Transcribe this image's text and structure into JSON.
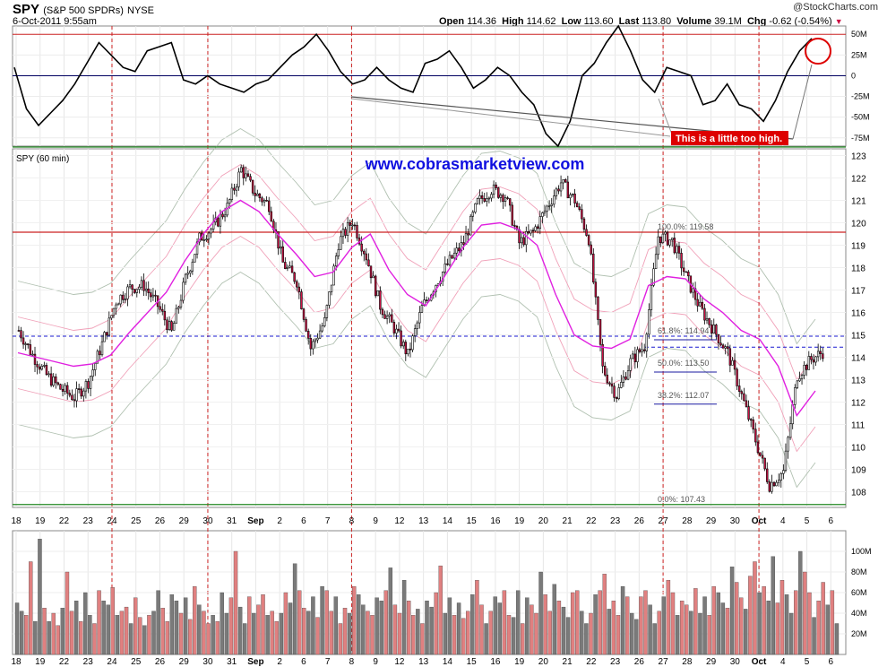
{
  "header": {
    "symbol": "SPY",
    "name": "(S&P 500 SPDRs)",
    "exchange": "NYSE",
    "datetime": "6-Oct-2011 9:55am",
    "brand": "@StockCharts.com",
    "quote": {
      "open_label": "Open",
      "open": "114.36",
      "high_label": "High",
      "high": "114.62",
      "low_label": "Low",
      "low": "113.60",
      "last_label": "Last",
      "last": "113.80",
      "volume_label": "Volume",
      "volume": "39.1M",
      "chg_label": "Chg",
      "chg": "-0.62 (-0.54%)"
    }
  },
  "colors": {
    "up_candle": "#ffffff",
    "down_candle": "#cc1144",
    "ma_line": "#e020e0",
    "band_inner": "#f0a0b8",
    "band_outer": "#b0c0b0",
    "resistance": "#cc2222",
    "support": "#228822",
    "dash_blue": "#1a1ad0",
    "annotation_red": "#dd0000",
    "vol_up": "#e08080",
    "vol_down": "#7a7a7a",
    "site_text": "#1010e0"
  },
  "watermark": "www.cobrasmarketview.com",
  "annotation": "This is a little too high.",
  "chart_data": [
    {
      "type": "line",
      "panel": "oscillator",
      "y_ticks": [
        "50M",
        "25M",
        "0",
        "-25M",
        "-50M",
        "-75M"
      ],
      "ylim": [
        -85,
        60
      ],
      "values": [
        10,
        -40,
        -60,
        -45,
        -30,
        -10,
        15,
        40,
        25,
        10,
        5,
        30,
        35,
        40,
        -5,
        -10,
        0,
        -10,
        -15,
        -20,
        -10,
        -5,
        10,
        25,
        35,
        50,
        30,
        5,
        -10,
        -5,
        10,
        -5,
        -15,
        -20,
        15,
        20,
        30,
        10,
        -15,
        -5,
        10,
        0,
        -20,
        -35,
        -70,
        -85,
        -55,
        0,
        15,
        40,
        60,
        30,
        -5,
        -20,
        10,
        5,
        0,
        -35,
        -30,
        -10,
        -35,
        -40,
        -55,
        -30,
        5,
        30,
        45
      ]
    },
    {
      "type": "candlestick",
      "panel": "price",
      "title": "SPY (60 min)",
      "x_labels": [
        "18",
        "19",
        "22",
        "23",
        "24",
        "25",
        "26",
        "29",
        "30",
        "31",
        "Sep",
        "2",
        "6",
        "7",
        "8",
        "9",
        "12",
        "13",
        "14",
        "15",
        "16",
        "19",
        "20",
        "21",
        "22",
        "23",
        "26",
        "27",
        "28",
        "29",
        "30",
        "Oct",
        "4",
        "5",
        "6"
      ],
      "y_ticks": [
        "123",
        "122",
        "121",
        "120",
        "119",
        "118",
        "117",
        "116",
        "115",
        "114",
        "113",
        "112",
        "111",
        "110",
        "109",
        "108"
      ],
      "ylim": [
        107.3,
        123.3
      ],
      "closes": [
        115.2,
        114.1,
        113.2,
        112.6,
        112.2,
        112.9,
        114.6,
        116.5,
        117.1,
        117.2,
        116.3,
        115.1,
        117.5,
        119.3,
        119.8,
        120.7,
        122.4,
        121.3,
        120.8,
        118.2,
        117.4,
        114.4,
        115.6,
        119.1,
        120.1,
        118.5,
        116.3,
        115.3,
        114.1,
        116.2,
        117.3,
        118.3,
        119.1,
        120.9,
        121.5,
        121.2,
        119.1,
        119.6,
        120.7,
        121.8,
        121.0,
        119.3,
        113.5,
        112.3,
        113.8,
        114.5,
        119.4,
        119.2,
        117.6,
        116.2,
        115.2,
        114.2,
        112.3,
        110.3,
        108.3,
        108.9,
        113.2,
        113.9,
        114.3
      ],
      "ma": [
        114.2,
        114.0,
        113.8,
        113.6,
        113.7,
        114.1,
        115.1,
        116.0,
        116.9,
        118.3,
        119.5,
        120.5,
        121.0,
        120.5,
        119.5,
        118.6,
        117.6,
        117.8,
        118.9,
        119.5,
        117.9,
        116.8,
        116.3,
        117.6,
        118.9,
        119.9,
        120.0,
        119.7,
        119.0,
        116.8,
        115.0,
        114.5,
        114.4,
        114.8,
        117.2,
        117.6,
        117.5,
        116.6,
        116.0,
        115.2,
        114.8,
        113.6,
        111.4,
        112.5
      ],
      "fib_levels": [
        {
          "label": "100.0%: 119.58",
          "value": 119.58
        },
        {
          "label": "61.8%: 114.94",
          "value": 114.94
        },
        {
          "label": "50.0%: 113.50",
          "value": 113.5
        },
        {
          "label": "38.2%: 112.07",
          "value": 112.07
        },
        {
          "label": "0.0%: 107.43",
          "value": 107.43
        }
      ],
      "horizontal_lines": [
        {
          "kind": "resistance",
          "value": 119.58
        },
        {
          "kind": "support",
          "value": 107.43
        },
        {
          "kind": "dashed",
          "value": 114.94
        },
        {
          "kind": "dashed",
          "value": 114.45
        }
      ]
    },
    {
      "type": "bar",
      "panel": "volume",
      "y_ticks": [
        "100M",
        "80M",
        "60M",
        "40M",
        "20M"
      ],
      "ylim": [
        0,
        120
      ],
      "values": [
        50,
        42,
        38,
        90,
        32,
        112,
        45,
        32,
        40,
        28,
        45,
        80,
        42,
        52,
        32,
        60,
        38,
        30,
        62,
        52,
        48,
        65,
        38,
        42,
        46,
        30,
        55,
        36,
        28,
        38,
        42,
        62,
        45,
        32,
        58,
        52,
        40,
        55,
        34,
        66,
        48,
        42,
        30,
        38,
        32,
        60,
        40,
        55,
        100,
        46,
        30,
        56,
        40,
        48,
        58,
        38,
        42,
        32,
        40,
        60,
        50,
        88,
        62,
        45,
        42,
        56,
        36,
        66,
        62,
        42,
        56,
        30,
        45,
        40,
        66,
        58,
        48,
        42,
        38,
        55,
        52,
        62,
        84,
        48,
        40,
        72,
        52,
        38,
        44,
        30,
        52,
        46,
        60,
        86,
        40,
        55,
        38,
        50,
        35,
        42,
        58,
        72,
        48,
        30,
        42,
        56,
        50,
        62,
        38,
        36,
        62,
        30,
        55,
        48,
        40,
        80,
        58,
        42,
        68,
        52,
        46,
        36,
        60,
        62,
        42,
        30,
        40,
        58,
        62,
        78,
        44,
        52,
        38,
        66,
        56,
        40,
        34,
        56,
        62,
        48,
        30,
        42,
        56,
        72,
        60,
        38,
        52,
        48,
        42,
        64,
        40,
        56,
        38,
        66,
        60,
        50,
        45,
        85,
        70,
        55,
        44,
        76,
        90,
        60,
        66,
        52,
        95,
        50,
        72,
        58,
        40,
        62,
        100,
        80,
        60,
        36,
        52,
        70,
        48,
        62,
        30
      ]
    }
  ]
}
